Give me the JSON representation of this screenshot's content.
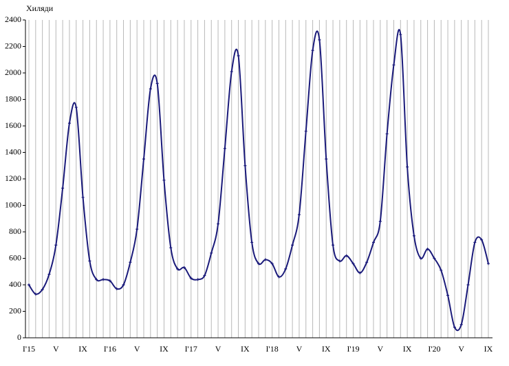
{
  "chart_data": {
    "type": "line",
    "y_axis_label": "Хиляди",
    "categories": [
      "I'15",
      null,
      null,
      null,
      "V",
      null,
      null,
      null,
      "IX",
      null,
      null,
      null,
      "I'16",
      null,
      null,
      null,
      "V",
      null,
      null,
      null,
      "IX",
      null,
      null,
      null,
      "I'17",
      null,
      null,
      null,
      "V",
      null,
      null,
      null,
      "IX",
      null,
      null,
      null,
      "I'18",
      null,
      null,
      null,
      "V",
      null,
      null,
      null,
      "IX",
      null,
      null,
      null,
      "I'19",
      null,
      null,
      null,
      "V",
      null,
      null,
      null,
      "IX",
      null,
      null,
      null,
      "I'20",
      null,
      null,
      null,
      "V",
      null,
      null,
      null,
      "IX"
    ],
    "values": [
      400,
      330,
      365,
      480,
      700,
      1130,
      1620,
      1740,
      1060,
      580,
      440,
      440,
      430,
      370,
      400,
      570,
      820,
      1350,
      1880,
      1920,
      1190,
      680,
      520,
      530,
      450,
      440,
      470,
      640,
      860,
      1430,
      2010,
      2130,
      1300,
      720,
      560,
      590,
      560,
      460,
      520,
      700,
      930,
      1560,
      2170,
      2250,
      1350,
      700,
      580,
      620,
      560,
      490,
      570,
      720,
      880,
      1540,
      2060,
      2290,
      1290,
      770,
      600,
      670,
      600,
      510,
      320,
      80,
      100,
      400,
      720,
      740,
      560
    ],
    "color": "#1a1a7a",
    "ylim": [
      0,
      2400
    ],
    "yticks": [
      0,
      200,
      400,
      600,
      800,
      1000,
      1200,
      1400,
      1600,
      1800,
      2000,
      2200,
      2400
    ],
    "grid": true
  }
}
